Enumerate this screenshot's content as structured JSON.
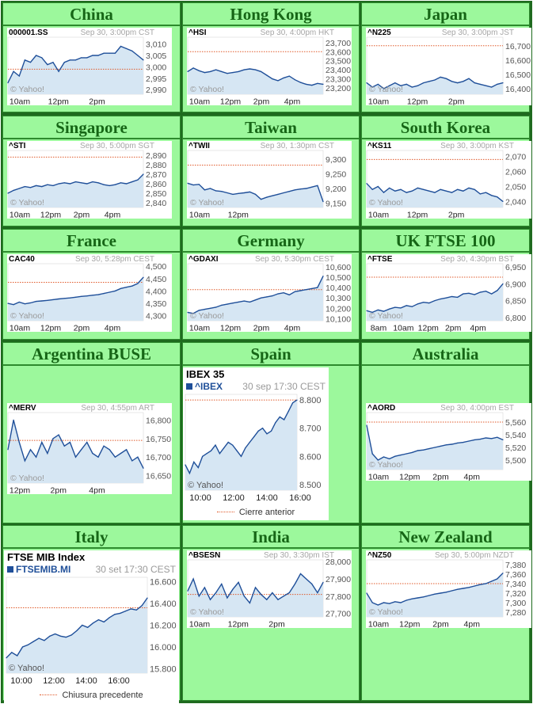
{
  "colors": {
    "line": "#1f4f99",
    "fill": "#d6e6f3",
    "prev_close": "#e05a2a",
    "frame_dark": "#1e6a1e",
    "cell": "#9cf89c",
    "heading": "#166616"
  },
  "markets": [
    {
      "name": "China",
      "symbol": "000001.SS",
      "stamp": "Sep 30, 3:00pm CST",
      "watermark": "© Yahoo!",
      "y_ticks": [
        "3,010",
        "3,005",
        "3,000",
        "2,995",
        "2,990"
      ],
      "x_ticks": [
        "10am",
        "12pm",
        "2pm"
      ],
      "chart_data": {
        "type": "line",
        "ylim": [
          2988,
          3013
        ],
        "prev_close": 2999,
        "values": [
          2993,
          2998,
          2996,
          3003,
          3002,
          3005,
          3004,
          3001,
          3002,
          2998,
          3002,
          3003,
          3003,
          3004,
          3004,
          3005,
          3005,
          3006,
          3006,
          3006,
          3009,
          3008,
          3007,
          3005,
          3003
        ]
      }
    },
    {
      "name": "Hong Kong",
      "symbol": "^HSI",
      "stamp": "Sep 30, 4:00pm HKT",
      "watermark": "© Yahoo!",
      "y_ticks": [
        "23,700",
        "23,600",
        "23,500",
        "23,400",
        "23,300",
        "23,200"
      ],
      "x_ticks": [
        "10am",
        "12pm",
        "2pm",
        "4pm"
      ],
      "chart_data": {
        "type": "line",
        "ylim": [
          23130,
          23760
        ],
        "prev_close": 23600,
        "values": [
          23380,
          23420,
          23390,
          23370,
          23380,
          23400,
          23380,
          23360,
          23370,
          23380,
          23400,
          23410,
          23400,
          23380,
          23340,
          23300,
          23280,
          23310,
          23330,
          23290,
          23260,
          23240,
          23230,
          23250,
          23240
        ]
      }
    },
    {
      "name": "Japan",
      "symbol": "^N225",
      "stamp": "Sep 30, 3:00pm JST",
      "watermark": "© Yahoo!",
      "y_ticks": [
        "16,700",
        "16,600",
        "16,500",
        "16,400"
      ],
      "x_ticks": [
        "10am",
        "12pm",
        "2pm"
      ],
      "chart_data": {
        "type": "line",
        "ylim": [
          16360,
          16760
        ],
        "prev_close": 16700,
        "values": [
          16440,
          16410,
          16430,
          16400,
          16420,
          16440,
          16420,
          16430,
          16410,
          16420,
          16440,
          16450,
          16460,
          16480,
          16470,
          16450,
          16440,
          16450,
          16470,
          16440,
          16430,
          16420,
          16410,
          16430,
          16440
        ]
      }
    },
    {
      "name": "Singapore",
      "symbol": "^STI",
      "stamp": "Sep 30, 5:00pm SGT",
      "watermark": "© Yahoo!",
      "y_ticks": [
        "2,890",
        "2,880",
        "2,870",
        "2,860",
        "2,850",
        "2,840"
      ],
      "x_ticks": [
        "10am",
        "12pm",
        "2pm",
        "4pm"
      ],
      "chart_data": {
        "type": "line",
        "ylim": [
          2835,
          2895
        ],
        "prev_close": 2888,
        "values": [
          2850,
          2853,
          2855,
          2857,
          2856,
          2858,
          2857,
          2859,
          2858,
          2860,
          2861,
          2860,
          2862,
          2861,
          2860,
          2862,
          2861,
          2859,
          2858,
          2859,
          2861,
          2860,
          2862,
          2864,
          2870
        ]
      }
    },
    {
      "name": "Taiwan",
      "symbol": "^TWII",
      "stamp": "Sep 30, 1:30pm CST",
      "watermark": "© Yahoo!",
      "y_ticks": [
        "9,300",
        "9,250",
        "9,200",
        "9,150"
      ],
      "x_ticks": [
        "10am",
        "12pm"
      ],
      "chart_data": {
        "type": "line",
        "ylim": [
          9135,
          9330
        ],
        "prev_close": 9280,
        "values": [
          9218,
          9212,
          9214,
          9195,
          9200,
          9192,
          9190,
          9185,
          9180,
          9183,
          9185,
          9188,
          9180,
          9163,
          9170,
          9175,
          9180,
          9185,
          9190,
          9195,
          9198,
          9200,
          9205,
          9210,
          9155
        ]
      }
    },
    {
      "name": "South Korea",
      "symbol": "^KS11",
      "stamp": "Sep 30, 3:00pm KST",
      "watermark": "© Yahoo!",
      "y_ticks": [
        "2,070",
        "2,060",
        "2,050",
        "2,040"
      ],
      "x_ticks": [
        "10am",
        "12pm",
        "2pm"
      ],
      "chart_data": {
        "type": "line",
        "ylim": [
          2036,
          2074
        ],
        "prev_close": 2068,
        "values": [
          2052,
          2048,
          2050,
          2046,
          2049,
          2047,
          2048,
          2046,
          2047,
          2049,
          2048,
          2047,
          2046,
          2048,
          2047,
          2046,
          2048,
          2047,
          2049,
          2048,
          2045,
          2046,
          2044,
          2043,
          2040
        ]
      }
    },
    {
      "name": "France",
      "symbol": "CAC40",
      "stamp": "Sep 30, 5:28pm CEST",
      "watermark": "© Yahoo!",
      "y_ticks": [
        "4,500",
        "4,450",
        "4,400",
        "4,350",
        "4,300"
      ],
      "x_ticks": [
        "10am",
        "12pm",
        "2pm",
        "4pm"
      ],
      "chart_data": {
        "type": "line",
        "ylim": [
          4280,
          4510
        ],
        "prev_close": 4435,
        "values": [
          4350,
          4345,
          4355,
          4348,
          4352,
          4358,
          4360,
          4362,
          4365,
          4368,
          4370,
          4372,
          4375,
          4378,
          4380,
          4383,
          4385,
          4390,
          4395,
          4400,
          4410,
          4415,
          4420,
          4430,
          4455
        ]
      }
    },
    {
      "name": "Germany",
      "symbol": "^GDAXI",
      "stamp": "Sep 30, 5:30pm CEST",
      "watermark": "© Yahoo!",
      "y_ticks": [
        "10,600",
        "10,500",
        "10,400",
        "10,300",
        "10,200",
        "10,100"
      ],
      "x_ticks": [
        "10am",
        "12pm",
        "2pm",
        "4pm"
      ],
      "chart_data": {
        "type": "line",
        "ylim": [
          10080,
          10630
        ],
        "prev_close": 10380,
        "values": [
          10160,
          10150,
          10180,
          10190,
          10200,
          10210,
          10230,
          10240,
          10250,
          10260,
          10270,
          10260,
          10280,
          10300,
          10310,
          10320,
          10340,
          10350,
          10330,
          10360,
          10370,
          10380,
          10390,
          10400,
          10510
        ]
      }
    },
    {
      "name": "UK FTSE 100",
      "symbol": "^FTSE",
      "stamp": "Sep 30, 4:30pm BST",
      "watermark": "© Yahoo!",
      "y_ticks": [
        "6,950",
        "6,900",
        "6,850",
        "6,800"
      ],
      "x_ticks": [
        "8am",
        "10am",
        "12pm",
        "2pm",
        "4pm"
      ],
      "chart_data": {
        "type": "line",
        "ylim": [
          6790,
          6960
        ],
        "prev_close": 6920,
        "values": [
          6820,
          6815,
          6822,
          6818,
          6825,
          6830,
          6828,
          6835,
          6832,
          6840,
          6845,
          6843,
          6850,
          6855,
          6858,
          6862,
          6860,
          6870,
          6872,
          6868,
          6875,
          6878,
          6870,
          6880,
          6900
        ]
      }
    },
    {
      "name": "Argentina BUSE",
      "symbol": "^MERV",
      "stamp": "Sep 30, 4:55pm ART",
      "watermark": "© Yahoo!",
      "y_ticks": [
        "16,800",
        "16,750",
        "16,700",
        "16,650"
      ],
      "x_ticks": [
        "12pm",
        "2pm",
        "4pm"
      ],
      "chart_data": {
        "type": "line",
        "ylim": [
          16630,
          16820
        ],
        "prev_close": 16745,
        "values": [
          16720,
          16800,
          16740,
          16690,
          16720,
          16700,
          16740,
          16710,
          16750,
          16760,
          16730,
          16740,
          16700,
          16720,
          16740,
          16710,
          16700,
          16730,
          16720,
          16700,
          16710,
          16720,
          16690,
          16700,
          16670
        ]
      }
    },
    {
      "name": "Spain",
      "watermark": "© Yahoo!",
      "big": true,
      "title": "IBEX 35",
      "legend": "^IBEX",
      "stamp": "30 sep 17:30 CEST",
      "footer": "Cierre anterior",
      "y_ticks": [
        "8.800",
        "8.700",
        "8.600",
        "8.500"
      ],
      "x_ticks": [
        "10:00",
        "12:00",
        "14:00",
        "16:00"
      ],
      "chart_data": {
        "type": "line",
        "ylim": [
          8480,
          8820
        ],
        "prev_close": 8800,
        "values": [
          8570,
          8540,
          8580,
          8560,
          8600,
          8610,
          8620,
          8640,
          8610,
          8630,
          8650,
          8640,
          8620,
          8600,
          8630,
          8650,
          8670,
          8690,
          8700,
          8680,
          8690,
          8720,
          8740,
          8730,
          8760,
          8790,
          8800
        ]
      }
    },
    {
      "name": "Australia",
      "symbol": "^AORD",
      "stamp": "Sep 30, 4:00pm EST",
      "watermark": "© Yahoo!",
      "y_ticks": [
        "5,560",
        "5,540",
        "5,520",
        "5,500"
      ],
      "x_ticks": [
        "10am",
        "12pm",
        "2pm",
        "4pm"
      ],
      "chart_data": {
        "type": "line",
        "ylim": [
          5485,
          5575
        ],
        "prev_close": 5560,
        "values": [
          5555,
          5510,
          5500,
          5505,
          5502,
          5506,
          5508,
          5510,
          5512,
          5515,
          5516,
          5518,
          5520,
          5522,
          5524,
          5525,
          5527,
          5528,
          5530,
          5532,
          5533,
          5535,
          5534,
          5536,
          5532
        ]
      }
    },
    {
      "name": "Italy",
      "watermark": "© Yahoo!",
      "big": true,
      "title": "FTSE MIB Index",
      "legend": "FTSEMIB.MI",
      "stamp": "30 set 17:30 CEST",
      "footer": "Chiusura precedente",
      "y_ticks": [
        "16.600",
        "16.400",
        "16.200",
        "16.000",
        "15.800"
      ],
      "x_ticks": [
        "10:00",
        "12:00",
        "14:00",
        "16:00"
      ],
      "chart_data": {
        "type": "line",
        "ylim": [
          15760,
          16640
        ],
        "prev_close": 16360,
        "values": [
          15900,
          15950,
          15920,
          16000,
          16020,
          16050,
          16080,
          16060,
          16100,
          16120,
          16100,
          16090,
          16110,
          16150,
          16200,
          16180,
          16220,
          16250,
          16230,
          16270,
          16300,
          16310,
          16330,
          16350,
          16340,
          16380,
          16450
        ]
      }
    },
    {
      "name": "India",
      "symbol": "^BSESN",
      "stamp": "Sep 30, 3:30pm IST",
      "watermark": "© Yahoo!",
      "y_ticks": [
        "28,000",
        "27,900",
        "27,800",
        "27,700"
      ],
      "x_ticks": [
        "10am",
        "12pm",
        "2pm"
      ],
      "chart_data": {
        "type": "line",
        "ylim": [
          27680,
          28010
        ],
        "prev_close": 27810,
        "values": [
          27830,
          27900,
          27800,
          27850,
          27780,
          27820,
          27870,
          27790,
          27840,
          27880,
          27800,
          27760,
          27850,
          27810,
          27780,
          27820,
          27780,
          27800,
          27820,
          27870,
          27930,
          27900,
          27870,
          27820,
          27880
        ]
      }
    },
    {
      "name": "New Zealand",
      "symbol": "^NZ50",
      "stamp": "Sep 30, 5:00pm NZDT",
      "watermark": "© Yahoo!",
      "y_ticks": [
        "7,380",
        "7,360",
        "7,340",
        "7,320",
        "7,300",
        "7,280"
      ],
      "x_ticks": [
        "10am",
        "12pm",
        "2pm",
        "4pm"
      ],
      "chart_data": {
        "type": "line",
        "ylim": [
          7270,
          7390
        ],
        "prev_close": 7340,
        "values": [
          7320,
          7300,
          7295,
          7300,
          7298,
          7302,
          7300,
          7305,
          7308,
          7310,
          7312,
          7315,
          7318,
          7320,
          7322,
          7325,
          7328,
          7330,
          7332,
          7335,
          7338,
          7340,
          7345,
          7350,
          7362
        ]
      }
    }
  ]
}
